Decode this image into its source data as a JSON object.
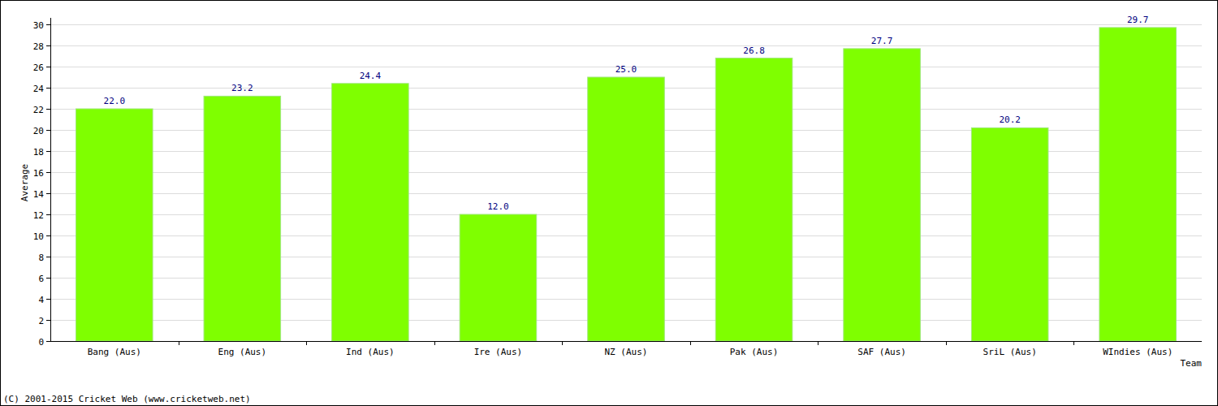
{
  "chart_data": {
    "type": "bar",
    "x_label": "Team",
    "y_label": "Average",
    "categories": [
      "Bang (Aus)",
      "Eng (Aus)",
      "Ind (Aus)",
      "Ire (Aus)",
      "NZ (Aus)",
      "Pak (Aus)",
      "SAF (Aus)",
      "SriL (Aus)",
      "WIndies (Aus)"
    ],
    "values": [
      22.0,
      23.2,
      24.4,
      12.0,
      25.0,
      26.8,
      27.7,
      20.2,
      29.7
    ],
    "value_labels": [
      "22.0",
      "23.2",
      "24.4",
      "12.0",
      "25.0",
      "26.8",
      "27.7",
      "20.2",
      "29.7"
    ],
    "color": "#7fff00",
    "ylim": [
      0,
      30
    ],
    "yticks": [
      0,
      2,
      4,
      6,
      8,
      10,
      12,
      14,
      16,
      18,
      20,
      22,
      24,
      26,
      28,
      30
    ],
    "grid": true,
    "data_labels": true,
    "annotations": [
      "(C) 2001-2015 Cricket Web (www.cricketweb.net)"
    ]
  }
}
